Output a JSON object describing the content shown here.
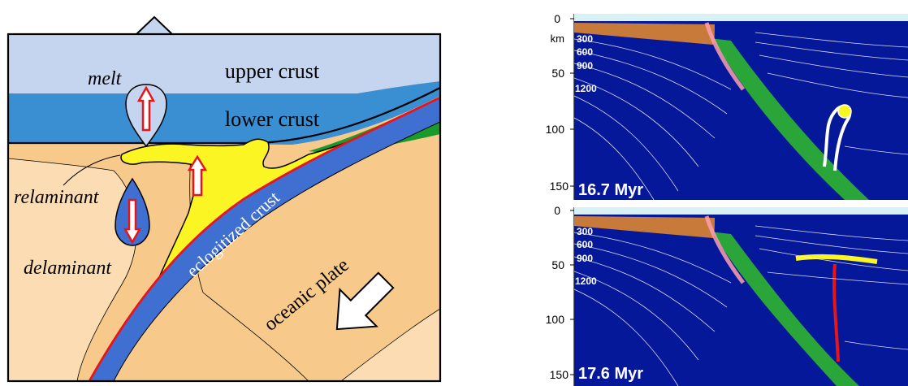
{
  "schematic": {
    "labels": {
      "upper_crust": "upper crust",
      "lower_crust": "lower crust",
      "melt": "melt",
      "relaminant": "relaminant",
      "delaminant": "delaminant",
      "eclogitized_crust": "eclogitized crust",
      "oceanic_plate": "oceanic plate"
    },
    "colors": {
      "upper_crust": "#c5d5ef",
      "lower_crust": "#3a8fd2",
      "mantle": "#f7c98a",
      "mantle_light": "#fbdcb3",
      "melt_fill": "#fbf623",
      "oceanic_crust": "#3f6fd0",
      "sediment_wedge": "#1a9a2b",
      "slab_top_line": "#e8141a"
    }
  },
  "model_panels": {
    "depth_axis": {
      "unit": "km",
      "ticks": [
        "0",
        "50",
        "100",
        "150"
      ]
    },
    "isotherms": [
      "300",
      "600",
      "900",
      "1200"
    ],
    "panels": [
      {
        "time_label": "16.7 Myr"
      },
      {
        "time_label": "17.6 Myr"
      }
    ],
    "colors": {
      "mantle": "#06189a",
      "slab": "#2aa53a",
      "isotherm": "#ffffff"
    }
  }
}
